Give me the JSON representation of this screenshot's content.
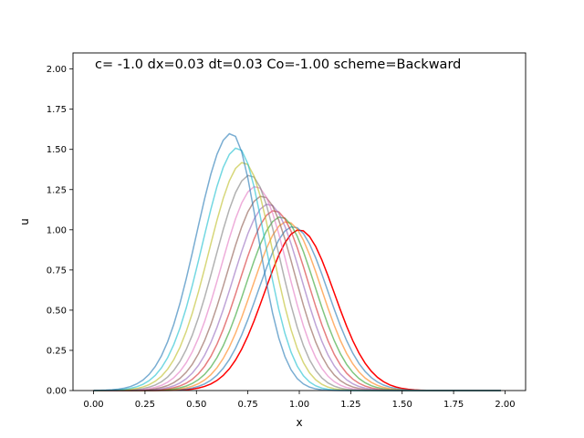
{
  "chart_data": {
    "type": "line",
    "title": "c= -1.0 dx=0.03 dt=0.03 Co=-1.00 scheme=Backward",
    "xlabel": "x",
    "ylabel": "u",
    "xlim": [
      -0.1,
      2.1
    ],
    "ylim": [
      0.0,
      2.1
    ],
    "xticks": [
      "0.00",
      "0.25",
      "0.50",
      "0.75",
      "1.00",
      "1.25",
      "1.50",
      "1.75",
      "2.00"
    ],
    "yticks": [
      "0.00",
      "0.25",
      "0.50",
      "0.75",
      "1.00",
      "1.25",
      "1.50",
      "1.75",
      "2.00"
    ],
    "grid": false,
    "legend": "none",
    "initial_condition_color": "#ff0000",
    "series_colors": [
      "#1f77b4",
      "#ff7f0e",
      "#2ca02c",
      "#d62728",
      "#9467bd",
      "#8c564b",
      "#e377c2",
      "#7f7f7f",
      "#bcbd22",
      "#17becf"
    ],
    "series": [
      {
        "peak_x": 1.0,
        "peak_u": 1.0,
        "width": 0.17,
        "color": "#ff0000"
      },
      {
        "peak_x": 0.97,
        "peak_u": 1.02,
        "width": 0.17,
        "color": "#1f77b4"
      },
      {
        "peak_x": 0.94,
        "peak_u": 1.05,
        "width": 0.17,
        "color": "#ff7f0e"
      },
      {
        "peak_x": 0.91,
        "peak_u": 1.08,
        "width": 0.17,
        "color": "#2ca02c"
      },
      {
        "peak_x": 0.88,
        "peak_u": 1.12,
        "width": 0.17,
        "color": "#d62728"
      },
      {
        "peak_x": 0.85,
        "peak_u": 1.16,
        "width": 0.17,
        "color": "#9467bd"
      },
      {
        "peak_x": 0.82,
        "peak_u": 1.21,
        "width": 0.17,
        "color": "#8c564b"
      },
      {
        "peak_x": 0.79,
        "peak_u": 1.27,
        "width": 0.17,
        "color": "#e377c2"
      },
      {
        "peak_x": 0.76,
        "peak_u": 1.34,
        "width": 0.17,
        "color": "#7f7f7f"
      },
      {
        "peak_x": 0.73,
        "peak_u": 1.42,
        "width": 0.17,
        "color": "#bcbd22"
      },
      {
        "peak_x": 0.7,
        "peak_u": 1.51,
        "width": 0.17,
        "color": "#17becf"
      },
      {
        "peak_x": 0.67,
        "peak_u": 1.6,
        "width": 0.17,
        "color": "#1f77b4"
      }
    ]
  }
}
